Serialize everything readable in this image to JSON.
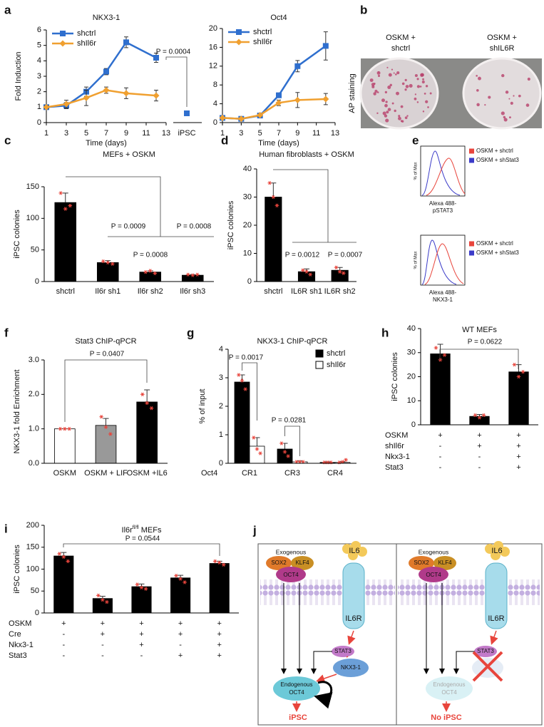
{
  "panel_labels": [
    "a",
    "b",
    "c",
    "d",
    "e",
    "f",
    "g",
    "h",
    "i",
    "j"
  ],
  "chart_data": [
    {
      "type": "line",
      "title": "NKX3-1",
      "ylabel": "Fold Induction",
      "xlabel": "Time (days)",
      "x": [
        1,
        3,
        5,
        7,
        9,
        12
      ],
      "xlim": [
        1,
        13
      ],
      "xticks": [
        1,
        3,
        5,
        7,
        9,
        11,
        13
      ],
      "ylim": [
        0,
        6
      ],
      "yticks": [
        0,
        1,
        2,
        3,
        4,
        5,
        6
      ],
      "series": [
        {
          "name": "shctrl",
          "color": "#2f6fce",
          "marker": "square",
          "values": [
            1,
            1.1,
            2,
            3.3,
            5.2,
            4.2
          ],
          "errors": [
            0.1,
            0.2,
            0.3,
            0.2,
            0.35,
            0.3
          ]
        },
        {
          "name": "shIl6r",
          "color": "#f0a030",
          "marker": "diamond",
          "values": [
            1,
            1.2,
            1.6,
            2.1,
            1.9,
            1.75
          ],
          "errors": [
            0.1,
            0.25,
            0.5,
            0.2,
            0.35,
            0.35
          ]
        }
      ],
      "extra_point": {
        "label": "iPSC",
        "value": 0.6,
        "color": "#2f6fce"
      },
      "annotations": [
        "P = 0.0004"
      ]
    },
    {
      "type": "line",
      "title": "Oct4",
      "xlabel": "Time (days)",
      "x": [
        1,
        3,
        5,
        7,
        9,
        12
      ],
      "xlim": [
        1,
        13
      ],
      "xticks": [
        1,
        3,
        5,
        7,
        9,
        11,
        13
      ],
      "ylim": [
        0,
        20
      ],
      "yticks": [
        0,
        4,
        8,
        12,
        16,
        20
      ],
      "series": [
        {
          "name": "shctrl",
          "color": "#2f6fce",
          "marker": "square",
          "values": [
            1,
            0.8,
            1.5,
            5.8,
            12,
            16.3
          ],
          "errors": [
            0.2,
            0.2,
            0.3,
            0.5,
            1.2,
            3
          ]
        },
        {
          "name": "shIl6r",
          "color": "#f0a030",
          "marker": "diamond",
          "values": [
            1,
            0.8,
            1.6,
            4.2,
            4.8,
            5
          ],
          "errors": [
            0.2,
            0.2,
            0.3,
            0.6,
            1.6,
            1.2
          ]
        }
      ]
    },
    {
      "type": "bar",
      "title": "MEFs + OSKM",
      "ylabel": "iPSC colonies",
      "categories": [
        "shctrl",
        "Il6r sh1",
        "Il6r sh2",
        "Il6r sh3"
      ],
      "ylim": [
        0,
        150
      ],
      "yticks": [
        0,
        50,
        100,
        150
      ],
      "series": [
        {
          "color": "#000000",
          "values": [
            125,
            30,
            15,
            10
          ],
          "errors": [
            15,
            3,
            2,
            1
          ],
          "points": [
            [
              140,
              115,
              120
            ],
            [
              32,
              30,
              28
            ],
            [
              15,
              17,
              13
            ],
            [
              11,
              10,
              11
            ]
          ]
        }
      ],
      "annotations": [
        "P = 0.0009",
        "P = 0.0008",
        "P = 0.0008"
      ]
    },
    {
      "type": "bar",
      "title": "Human fibroblasts + OSKM",
      "ylabel": "iPSC colonies",
      "categories": [
        "shctrl",
        "IL6R sh1",
        "IL6R sh2"
      ],
      "ylim": [
        0,
        40
      ],
      "yticks": [
        0,
        10,
        20,
        30,
        40
      ],
      "series": [
        {
          "color": "#000000",
          "values": [
            30,
            3.5,
            4
          ],
          "errors": [
            5,
            1,
            1
          ],
          "points": [
            [
              35,
              30,
              27
            ],
            [
              4,
              3.5,
              2.5
            ],
            [
              5,
              3.5,
              3
            ]
          ]
        }
      ],
      "annotations": [
        "P = 0.0012",
        "P = 0.0007"
      ]
    },
    {
      "type": "bar",
      "title": "Stat3 ChIP-qPCR",
      "ylabel": "NKX3-1 fold Enrichment",
      "categories": [
        "OSKM",
        "OSKM + LIF",
        "OSKM +IL6"
      ],
      "ylim": [
        0,
        3
      ],
      "yticks": [
        {
          "value": 0,
          "label": "0.0"
        },
        {
          "value": 1,
          "label": "1.0"
        },
        {
          "value": 2,
          "label": "2.0"
        },
        {
          "value": 3,
          "label": "3.0"
        }
      ],
      "series": [
        {
          "colors": [
            "#ffffff",
            "#999999",
            "#000000"
          ],
          "values": [
            1,
            1.1,
            1.78
          ],
          "errors": [
            0,
            0.2,
            0.35
          ],
          "points": [
            [
              1,
              1,
              1
            ],
            [
              1.35,
              1.05,
              0.85
            ],
            [
              2,
              1.75,
              1.6
            ]
          ]
        }
      ],
      "annotations": [
        "P = 0.0407"
      ]
    },
    {
      "type": "bar",
      "title": "NKX3-1 ChIP-qPCR",
      "ylabel": "% of input",
      "x_prefix": "Oct4",
      "categories": [
        "CR1",
        "CR3",
        "CR4"
      ],
      "ylim": [
        0,
        4
      ],
      "yticks": [
        0,
        1,
        2,
        3,
        4
      ],
      "series": [
        {
          "name": "shctrl",
          "color": "#000000",
          "values": [
            2.85,
            0.5,
            0.03
          ],
          "errors": [
            0.25,
            0.2,
            0.02
          ],
          "points": [
            [
              3.1,
              2.9,
              2.6
            ],
            [
              0.7,
              0.4,
              0.25
            ],
            [
              0.03,
              0.03,
              0.03
            ]
          ]
        },
        {
          "name": "shIl6r",
          "color": "#ffffff",
          "values": [
            0.6,
            0.05,
            0.03
          ],
          "errors": [
            0.3,
            0.03,
            0.03
          ],
          "points": [
            [
              0.9,
              0.5,
              0.35
            ],
            [
              0.05,
              0.05,
              0.05
            ],
            [
              0.03,
              0.05,
              0.12
            ]
          ]
        }
      ],
      "annotations": [
        "P = 0.0017",
        "P = 0.0281"
      ]
    },
    {
      "type": "bar",
      "title": "WT MEFs",
      "ylabel": "iPSC colonies",
      "ylim": [
        0,
        40
      ],
      "yticks": [
        0,
        10,
        20,
        30,
        40
      ],
      "series": [
        {
          "color": "#000000",
          "values": [
            29.5,
            3.5,
            22
          ],
          "errors": [
            4,
            0.8,
            3
          ],
          "points": [
            [
              32,
              27,
              29
            ],
            [
              4,
              3,
              4
            ],
            [
              25,
              20,
              22
            ]
          ]
        }
      ],
      "annotations": [
        "P = 0.0622"
      ],
      "table": [
        {
          "label": "OSKM",
          "cells": [
            "+",
            "+",
            "+"
          ]
        },
        {
          "label": "shIl6r",
          "cells": [
            "-",
            "+",
            "+"
          ]
        },
        {
          "label": "Nkx3-1",
          "cells": [
            "-",
            "-",
            "+"
          ]
        },
        {
          "label": "Stat3",
          "cells": [
            "-",
            "-",
            "+"
          ]
        }
      ]
    },
    {
      "type": "bar",
      "title": "Il6r",
      "title_superscript": "fl/fl",
      "title_suffix": "MEFs",
      "ylabel": "iPSC colonies",
      "ylim": [
        0,
        200
      ],
      "yticks": [
        0,
        50,
        100,
        150,
        200
      ],
      "series": [
        {
          "color": "#000000",
          "values": [
            130,
            33,
            60,
            80,
            113
          ],
          "errors": [
            8,
            5,
            6,
            6,
            5
          ],
          "points": [
            [
              135,
              128,
              118
            ],
            [
              40,
              30,
              25
            ],
            [
              65,
              58,
              55
            ],
            [
              85,
              78,
              70
            ],
            [
              118,
              115,
              110
            ]
          ]
        }
      ],
      "annotations": [
        "P = 0.0544"
      ],
      "table": [
        {
          "label": "OSKM",
          "cells": [
            "+",
            "+",
            "+",
            "+",
            "+"
          ]
        },
        {
          "label": "Cre",
          "cells": [
            "-",
            "+",
            "+",
            "+",
            "+"
          ]
        },
        {
          "label": "Nkx3-1",
          "cells": [
            "-",
            "-",
            "+",
            "-",
            "+"
          ]
        },
        {
          "label": "Stat3",
          "cells": [
            "-",
            "-",
            "-",
            "+",
            "+"
          ]
        }
      ]
    }
  ],
  "ap_staining": {
    "left": [
      "OSKM +",
      "shctrl"
    ],
    "right": [
      "OSKM +",
      "shIL6R"
    ],
    "side_label": "AP staining"
  },
  "flow_cytometry": [
    {
      "ylabel": "% of Max",
      "xlabel": [
        "Alexa 488-",
        "pSTAT3"
      ],
      "legend": [
        {
          "name": "OSKM + shctrl",
          "color": "#e8453c"
        },
        {
          "name": "OSKM + shStat3",
          "color": "#3b3bc8"
        }
      ]
    },
    {
      "ylabel": "% of Max",
      "xlabel": [
        "Alexa 488-",
        "NKX3-1"
      ],
      "legend": [
        {
          "name": "OSKM + shctrl",
          "color": "#e8453c"
        },
        {
          "name": "OSKM + shStat3",
          "color": "#3b3bc8"
        }
      ]
    }
  ],
  "model_diagram": {
    "left": {
      "exogenous": "Exogenous",
      "sox2": "SOX2",
      "klf4": "KLF4",
      "oct4": "OCT4",
      "il6": "IL6",
      "il6r": "IL6R",
      "stat3": "STAT3",
      "nkx3_1": "NKX3-1",
      "endogenous": [
        "Endogenous",
        "OCT4"
      ],
      "outcome": "iPSC"
    },
    "right": {
      "exogenous": "Exogenous",
      "sox2": "SOX2",
      "klf4": "KLF4",
      "oct4": "OCT4",
      "il6": "IL6",
      "il6r": "IL6R",
      "stat3": "STAT3",
      "endogenous": [
        "Endogenous",
        "OCT4"
      ],
      "outcome": "No iPSC"
    }
  }
}
